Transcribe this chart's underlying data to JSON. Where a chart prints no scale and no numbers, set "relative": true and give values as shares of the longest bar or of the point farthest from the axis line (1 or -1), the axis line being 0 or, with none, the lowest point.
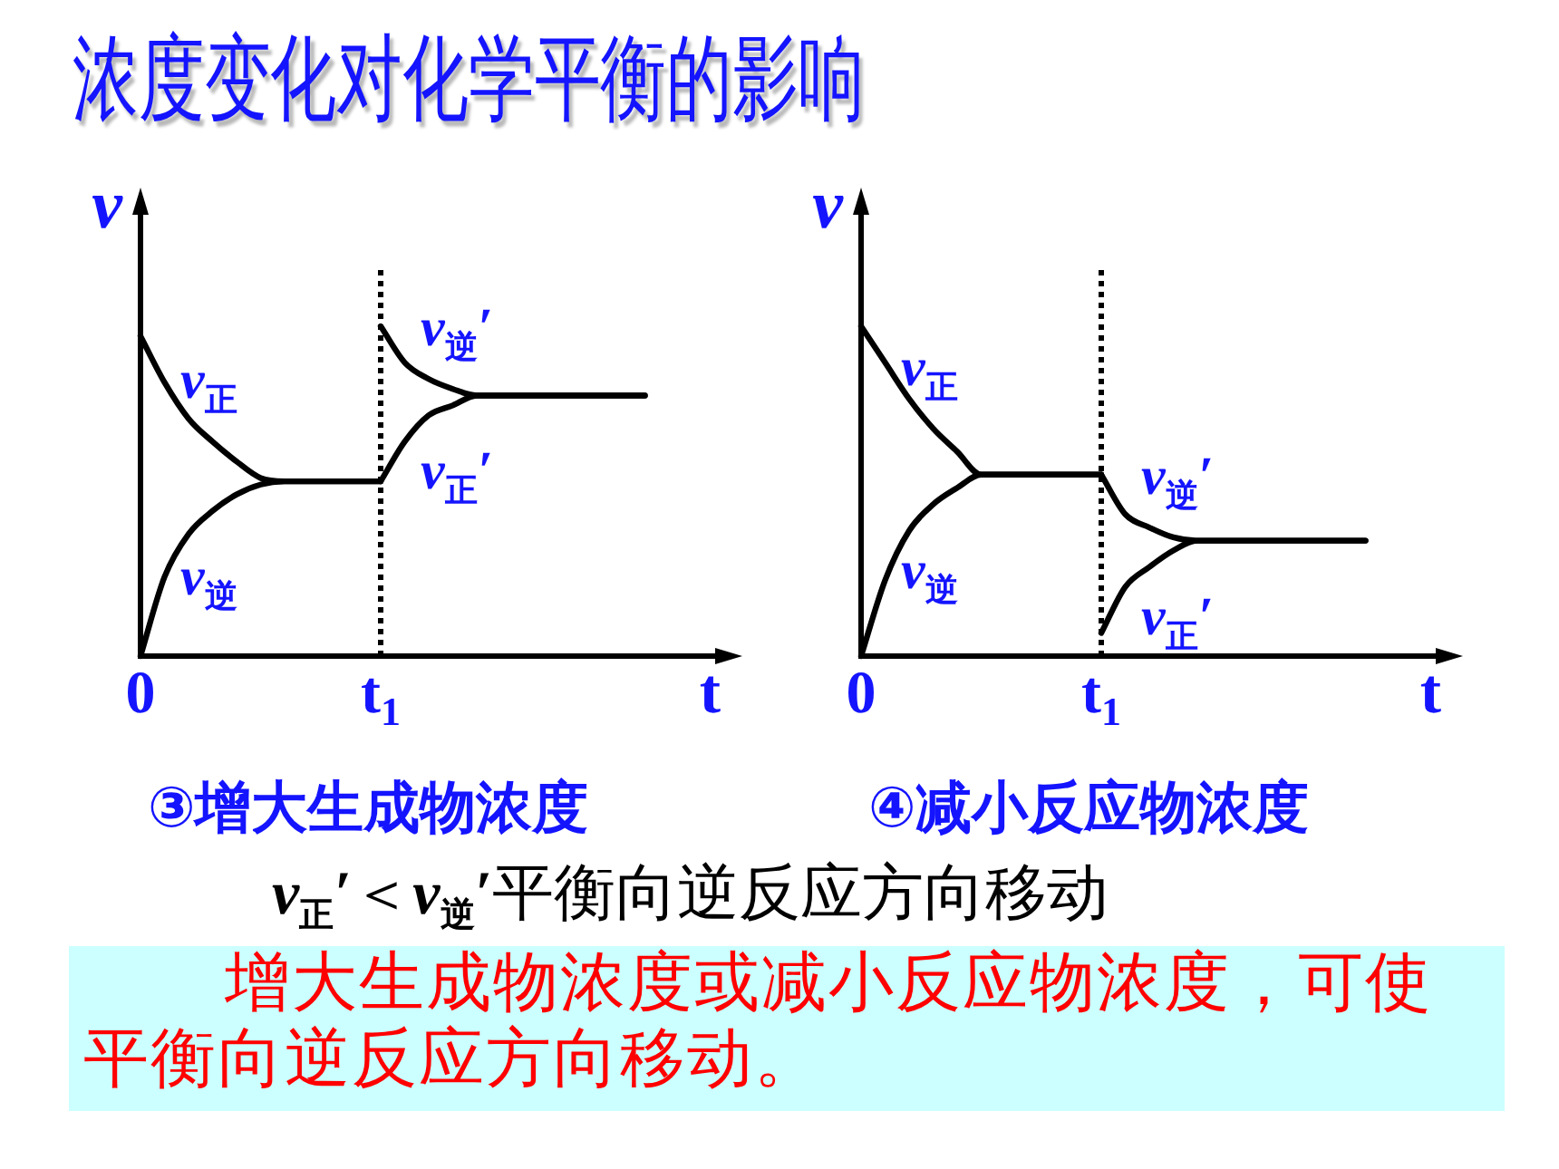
{
  "chart_data": [
    {
      "type": "other",
      "title": "浓度变化对化学平衡的影响"
    },
    {
      "type": "line",
      "title": "③增大生成物浓度",
      "xlabel": "t",
      "ylabel": "v",
      "relative": true,
      "categories": [
        "0",
        null,
        null,
        null,
        null,
        null,
        null,
        null,
        null,
        null,
        "t$_{1}$",
        null,
        null,
        null,
        null,
        null,
        null,
        null,
        null,
        null,
        null,
        null,
        null,
        null,
        null
      ],
      "ref_lines": [
        {
          "axis": "x",
          "value": "t$_{1}$",
          "line_style": "dotted",
          "color": "#000000"
        }
      ],
      "series": [
        {
          "name": "v$_{正}$",
          "color": "#000000",
          "values": [
            0.97,
            0.83,
            0.72,
            0.65,
            0.59,
            0.54,
            0.53,
            0.53,
            0.53,
            0.53,
            0.53,
            null,
            null,
            null,
            null,
            null,
            null,
            null,
            null,
            null,
            null,
            null,
            null,
            null,
            null
          ]
        },
        {
          "name": "v$_{逆}$",
          "color": "#000000",
          "values": [
            0,
            0.24,
            0.37,
            0.44,
            0.49,
            0.52,
            0.53,
            0.53,
            0.53,
            0.53,
            0.53,
            null,
            null,
            null,
            null,
            null,
            null,
            null,
            null,
            null,
            null,
            null,
            null,
            null,
            null
          ]
        },
        {
          "name": "v$_{逆}$′",
          "color": "#000000",
          "values": [
            null,
            null,
            null,
            null,
            null,
            null,
            null,
            null,
            null,
            null,
            1,
            0.89,
            0.84,
            0.81,
            0.79,
            0.79,
            0.79,
            0.79,
            0.79,
            0.79,
            0.79,
            0.79,
            null,
            null,
            null
          ]
        },
        {
          "name": "v$_{正}$′",
          "color": "#000000",
          "values": [
            null,
            null,
            null,
            null,
            null,
            null,
            null,
            null,
            null,
            null,
            0.53,
            0.65,
            0.73,
            0.76,
            0.79,
            0.79,
            0.79,
            0.79,
            0.79,
            0.79,
            0.79,
            0.79,
            null,
            null,
            null
          ]
        }
      ]
    },
    {
      "type": "line",
      "title": "④减小反应物浓度",
      "xlabel": "t",
      "ylabel": "v",
      "relative": true,
      "categories": [
        "0",
        null,
        null,
        null,
        null,
        null,
        null,
        null,
        null,
        null,
        "t$_{1}$",
        null,
        null,
        null,
        null,
        null,
        null,
        null,
        null,
        null,
        null,
        null,
        null,
        null,
        null
      ],
      "ref_lines": [
        {
          "axis": "x",
          "value": "t$_{1}$",
          "line_style": "dotted",
          "color": "#000000"
        }
      ],
      "series": [
        {
          "name": "v$_{正}$",
          "color": "#000000",
          "values": [
            1,
            0.89,
            0.78,
            0.69,
            0.62,
            0.55,
            0.55,
            0.55,
            0.55,
            0.55,
            0.55,
            null,
            null,
            null,
            null,
            null,
            null,
            null,
            null,
            null,
            null,
            null,
            null,
            null,
            null
          ]
        },
        {
          "name": "v$_{逆}$",
          "color": "#000000",
          "values": [
            0,
            0.23,
            0.38,
            0.46,
            0.51,
            0.55,
            0.55,
            0.55,
            0.55,
            0.55,
            0.55,
            null,
            null,
            null,
            null,
            null,
            null,
            null,
            null,
            null,
            null,
            null,
            null,
            null,
            null
          ]
        },
        {
          "name": "v$_{逆}$′",
          "color": "#000000",
          "values": [
            null,
            null,
            null,
            null,
            null,
            null,
            null,
            null,
            null,
            null,
            0.55,
            0.43,
            0.39,
            0.36,
            0.35,
            0.35,
            0.35,
            0.35,
            0.35,
            0.35,
            0.35,
            0.35,
            null,
            null,
            null
          ]
        },
        {
          "name": "v$_{正}$′",
          "color": "#000000",
          "values": [
            null,
            null,
            null,
            null,
            null,
            null,
            null,
            null,
            null,
            null,
            0.07,
            0.21,
            0.27,
            0.32,
            0.35,
            0.35,
            0.35,
            0.35,
            0.35,
            0.35,
            0.35,
            0.35,
            null,
            null,
            null
          ]
        }
      ]
    },
    {
      "type": "other",
      "annotations": [
        "v$_{正}$′＜v$_{逆}$′平衡向逆反应方向移动",
        "增大生成物浓度或减小反应物浓度，可使平衡向逆反应方向移动。"
      ]
    }
  ]
}
